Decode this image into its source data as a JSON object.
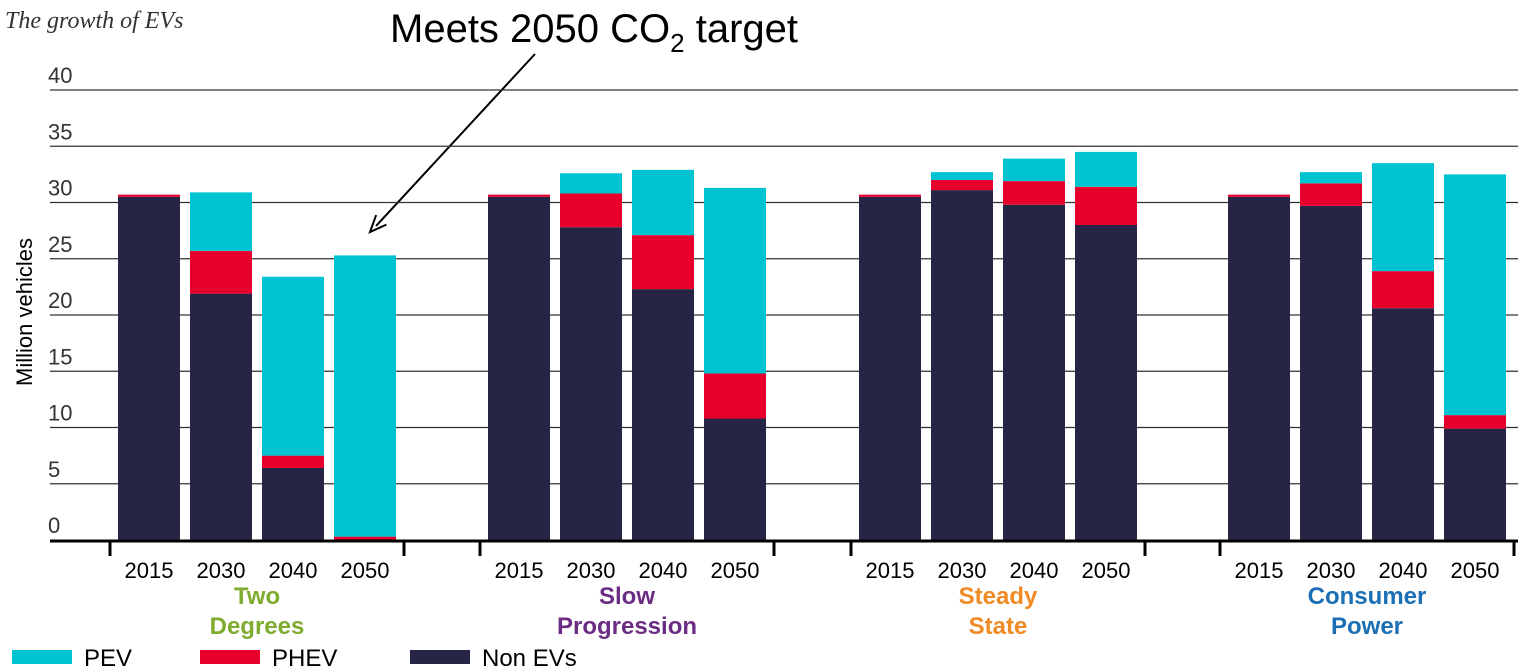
{
  "chart_data": {
    "type": "bar",
    "stacked": true,
    "title": "The growth of EVs",
    "annotation": {
      "text_main": "Meets 2050 CO",
      "text_sub": "2",
      "text_tail": " target",
      "points_to": "Two Degrees 2050"
    },
    "ylabel": "Million vehicles",
    "xlabel": "",
    "ylim": [
      0,
      40
    ],
    "yticks": [
      0,
      5,
      10,
      15,
      20,
      25,
      30,
      35,
      40
    ],
    "grid": true,
    "legend_placement": "bottom-left",
    "years": [
      "2015",
      "2030",
      "2040",
      "2050"
    ],
    "groups": [
      {
        "name_lines": [
          "Two",
          "Degrees"
        ],
        "color": "#7dac2f",
        "non_evs": [
          30.5,
          21.9,
          6.4,
          0.0
        ],
        "phev": [
          0.2,
          3.8,
          1.1,
          0.3
        ],
        "pev": [
          0.0,
          5.2,
          15.9,
          25.0
        ]
      },
      {
        "name_lines": [
          "Slow",
          "Progression"
        ],
        "color": "#6b2c83",
        "non_evs": [
          30.5,
          27.8,
          22.3,
          10.8
        ],
        "phev": [
          0.2,
          3.0,
          4.8,
          4.0
        ],
        "pev": [
          0.0,
          1.8,
          5.8,
          16.5
        ]
      },
      {
        "name_lines": [
          "Steady",
          "State"
        ],
        "color": "#f08a24",
        "non_evs": [
          30.5,
          31.1,
          29.8,
          28.0
        ],
        "phev": [
          0.2,
          0.9,
          2.1,
          3.4
        ],
        "pev": [
          0.0,
          0.7,
          2.0,
          3.1
        ]
      },
      {
        "name_lines": [
          "Consumer",
          "Power"
        ],
        "color": "#1a6fb5",
        "non_evs": [
          30.5,
          29.7,
          20.6,
          9.9
        ],
        "phev": [
          0.2,
          2.0,
          3.3,
          1.2
        ],
        "pev": [
          0.0,
          1.0,
          9.6,
          21.4
        ]
      }
    ],
    "series": [
      {
        "name": "PEV",
        "key": "pev",
        "color": "#00c3d1"
      },
      {
        "name": "PHEV",
        "key": "phev",
        "color": "#e8002d"
      },
      {
        "name": "Non EVs",
        "key": "non_evs",
        "color": "#272545"
      }
    ]
  }
}
